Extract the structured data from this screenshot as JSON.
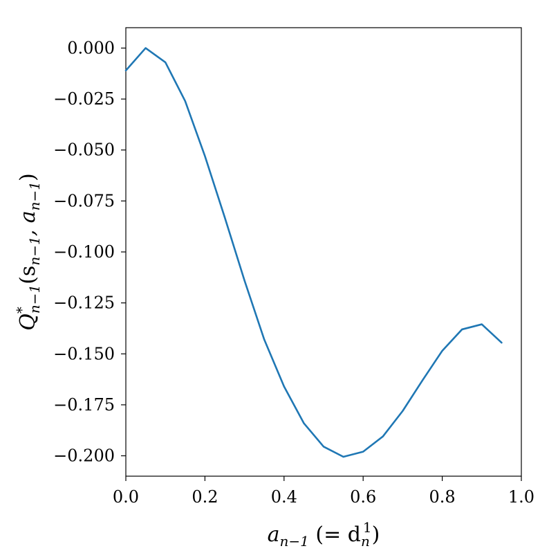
{
  "chart_data": {
    "type": "line",
    "title": "",
    "xlabel": {
      "main": "a",
      "sub": "n−1",
      "tail": " (= d",
      "tail_sub": "n",
      "tail_sup": "1",
      "close": ")"
    },
    "ylabel": {
      "main": "Q",
      "sup": "*",
      "sub": "n−1",
      "args": "(s",
      "args_sub1": "n−1",
      "args_mid": ", a",
      "args_sub2": "n−1",
      "args_close": ")"
    },
    "xlim": [
      0.0,
      1.0
    ],
    "ylim": [
      -0.21,
      0.01
    ],
    "x_ticks": [
      0.0,
      0.2,
      0.4,
      0.6,
      0.8,
      1.0
    ],
    "x_tick_labels": [
      "0.0",
      "0.2",
      "0.4",
      "0.6",
      "0.8",
      "1.0"
    ],
    "y_ticks": [
      0.0,
      -0.025,
      -0.05,
      -0.075,
      -0.1,
      -0.125,
      -0.15,
      -0.175,
      -0.2
    ],
    "y_tick_labels": [
      "0.000",
      "−0.025",
      "−0.050",
      "−0.075",
      "−0.100",
      "−0.125",
      "−0.150",
      "−0.175",
      "−0.200"
    ],
    "grid": false,
    "series": [
      {
        "color": "#1f77b4",
        "x": [
          0.0,
          0.05,
          0.1,
          0.15,
          0.2,
          0.25,
          0.3,
          0.35,
          0.4,
          0.45,
          0.5,
          0.55,
          0.6,
          0.65,
          0.7,
          0.75,
          0.8,
          0.85,
          0.9,
          0.95
        ],
        "y": [
          -0.011,
          0.0,
          -0.007,
          -0.026,
          -0.053,
          -0.083,
          -0.114,
          -0.143,
          -0.166,
          -0.184,
          -0.1955,
          -0.2005,
          -0.198,
          -0.1905,
          -0.178,
          -0.163,
          -0.1485,
          -0.138,
          -0.1355,
          -0.1445
        ]
      }
    ]
  }
}
